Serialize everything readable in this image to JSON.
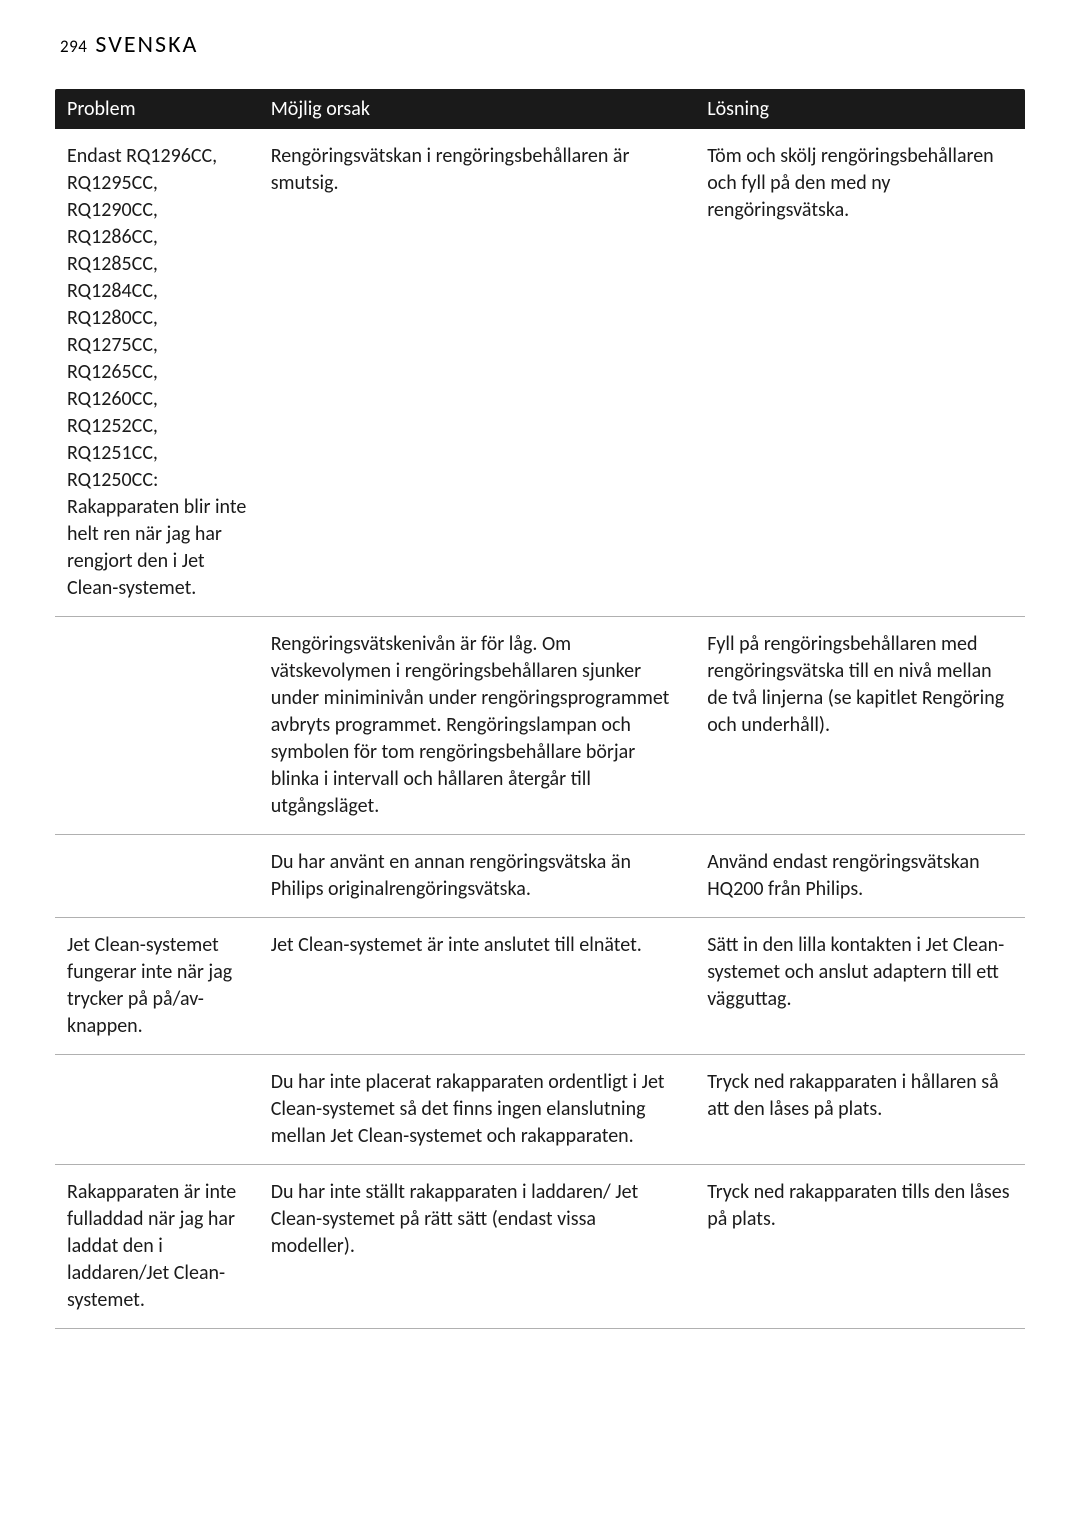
{
  "header": {
    "page_number": "294",
    "title": "SVENSKA"
  },
  "table": {
    "columns": [
      "Problem",
      "Möjlig orsak",
      "Lösning"
    ],
    "rows": [
      {
        "problem": "Endast RQ1296CC, RQ1295CC, RQ1290CC, RQ1286CC, RQ1285CC, RQ1284CC, RQ1280CC, RQ1275CC, RQ1265CC, RQ1260CC, RQ1252CC, RQ1251CC, RQ1250CC: Rakapparaten blir inte helt ren när jag har rengjort den i Jet Clean-systemet.",
        "cause": "Rengöringsvätskan i rengöringsbehållaren är smutsig.",
        "solution": "Töm och skölj rengöringsbehållaren och fyll på den med ny rengöringsvätska."
      },
      {
        "problem": "",
        "cause": "Rengöringsvätskenivån är för låg. Om vätskevolymen i rengöringsbehållaren sjunker under miniminivån under rengöringsprogrammet avbryts programmet. Rengöringslampan och symbolen för tom rengöringsbehållare börjar blinka i intervall och hållaren återgår till utgångsläget.",
        "solution": "Fyll på rengöringsbehållaren med rengöringsvätska till en nivå mellan de två linjerna (se kapitlet Rengöring och underhåll)."
      },
      {
        "problem": "",
        "cause": "Du har använt en annan rengöringsvätska än Philips originalrengöringsvätska.",
        "solution": "Använd endast rengöringsvätskan HQ200 från Philips."
      },
      {
        "problem": "Jet Clean-systemet fungerar inte när jag trycker på på/av-knappen.",
        "cause": "Jet Clean-systemet är inte anslutet till elnätet.",
        "solution": "Sätt in den lilla kontakten i Jet Clean-systemet och anslut adaptern till ett vägguttag."
      },
      {
        "problem": "",
        "cause": "Du har inte placerat rakapparaten ordentligt i Jet Clean-systemet så det finns ingen elanslutning mellan Jet Clean-systemet och rakapparaten.",
        "solution": "Tryck ned rakapparaten i hållaren så att den låses på plats."
      },
      {
        "problem": "Rakapparaten är inte fulladdad när jag har laddat den i laddaren/Jet Clean-systemet.",
        "cause": "Du har inte ställt rakapparaten i laddaren/ Jet Clean-systemet på rätt sätt (endast vissa modeller).",
        "solution": "Tryck ned rakapparaten tills den låses på plats."
      }
    ]
  },
  "style": {
    "header_bg": "#1a1a1a",
    "header_fg": "#ffffff",
    "border_color": "#b0b0b0",
    "body_font_size": 20,
    "header_font_size": 20,
    "page_title_size": 24,
    "page_number_size": 17
  }
}
